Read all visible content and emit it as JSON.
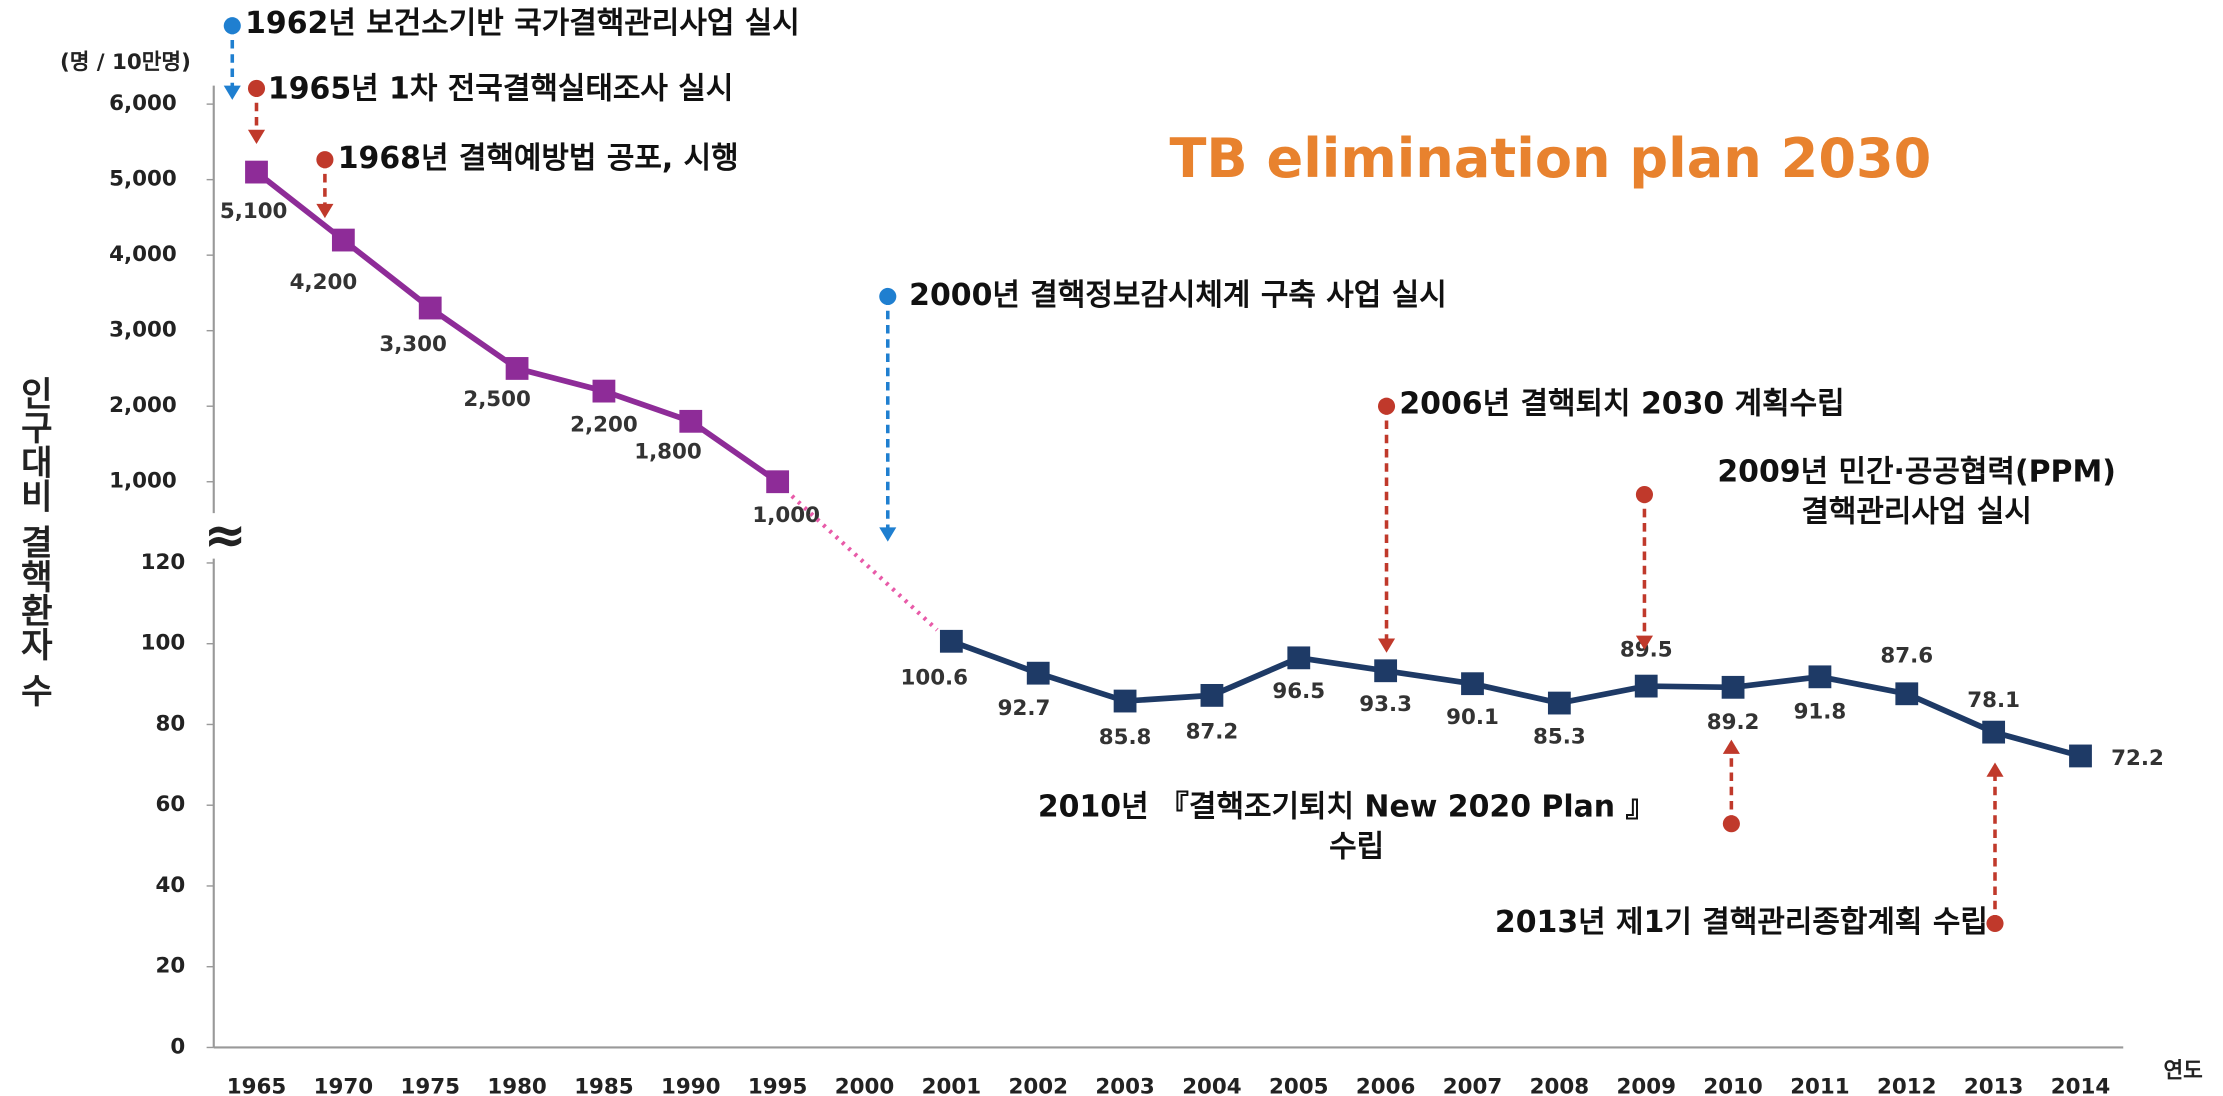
{
  "chart_data": {
    "type": "line",
    "title": "TB elimination plan 2030",
    "unit_label": "(명 / 10만명)",
    "y_axis_label": "인구대비 결핵환자 수",
    "x_axis_label": "연도",
    "break_symbol": "≈",
    "categories": [
      "1965",
      "1970",
      "1975",
      "1980",
      "1985",
      "1990",
      "1995",
      "2000",
      "2001",
      "2002",
      "2003",
      "2004",
      "2005",
      "2006",
      "2007",
      "2008",
      "2009",
      "2010",
      "2011",
      "2012",
      "2013",
      "2014"
    ],
    "series": [
      {
        "name": null,
        "color": "#8e2c98",
        "axis": "y2",
        "values": [
          5100,
          4200,
          3300,
          2500,
          2200,
          1800,
          1000,
          null,
          null,
          null,
          null,
          null,
          null,
          null,
          null,
          null,
          null,
          null,
          null,
          null,
          null,
          null
        ],
        "value_labels": [
          "5,100",
          "4,200",
          "3,300",
          "2,500",
          "2,200",
          "1,800",
          "1,000",
          null,
          null,
          null,
          null,
          null,
          null,
          null,
          null,
          null,
          null,
          null,
          null,
          null,
          null,
          null
        ]
      },
      {
        "name": null,
        "color": "#1e3a66",
        "values": [
          null,
          null,
          null,
          null,
          null,
          null,
          null,
          null,
          100.6,
          92.7,
          85.8,
          87.2,
          96.5,
          93.3,
          90.1,
          85.3,
          89.5,
          89.2,
          91.8,
          87.6,
          78.1,
          72.2
        ]
      }
    ],
    "ylim": [
      0,
      120
    ],
    "yticks": [
      0,
      20,
      40,
      60,
      80,
      100,
      120
    ],
    "y2lim": [
      1000,
      6000
    ],
    "y2ticks": [
      {
        "value": 1000,
        "label": "1,000"
      },
      {
        "value": 2000,
        "label": "2,000"
      },
      {
        "value": 3000,
        "label": "3,000"
      },
      {
        "value": 4000,
        "label": "4,000"
      },
      {
        "value": 5000,
        "label": "5,000"
      },
      {
        "value": 6000,
        "label": "6,000"
      }
    ],
    "annotations": [
      {
        "lines": [
          "1962년 보건소기반 국가결핵관리사업 실시"
        ],
        "color": "#1f7fd0"
      },
      {
        "lines": [
          "1965년 1차 전국결핵실태조사 실시"
        ],
        "color": "#c0392b"
      },
      {
        "lines": [
          "1968년 결핵예방법 공포, 시행"
        ],
        "color": "#c0392b"
      },
      {
        "lines": [
          "2000년 결핵정보감시체계 구축 사업 실시"
        ],
        "color": "#1f7fd0"
      },
      {
        "lines": [
          "2006년 결핵퇴치 2030 계획수립"
        ],
        "color": "#c0392b"
      },
      {
        "lines": [
          "2009년 민간·공공협력(PPM)",
          "결핵관리사업 실시"
        ],
        "color": "#c0392b"
      },
      {
        "lines": [
          "2010년 『결핵조기퇴치 New 2020 Plan 』",
          "수립"
        ],
        "color": "#c0392b"
      },
      {
        "lines": [
          "2013년 제1기 결핵관리종합계획 수립"
        ],
        "color": "#c0392b"
      }
    ]
  }
}
